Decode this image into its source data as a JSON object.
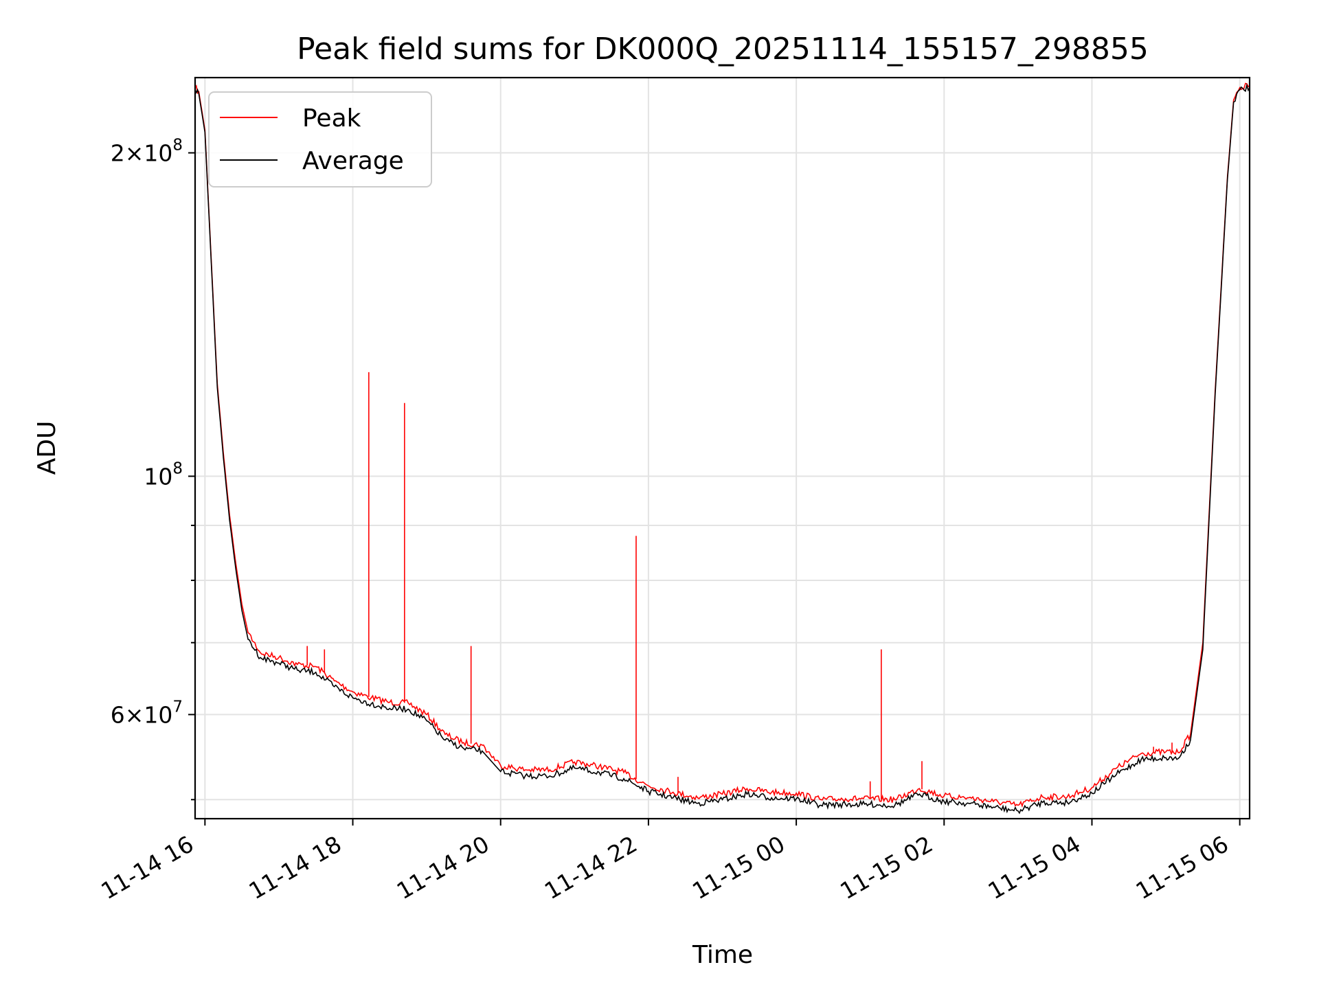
{
  "chart_data": {
    "type": "line",
    "title": "Peak field sums for DK000Q_20251114_155157_298855",
    "xlabel": "Time",
    "ylabel": "ADU",
    "x_range": [
      "2025-11-14 15:52",
      "2025-11-15 06:08"
    ],
    "y_range": [
      48000000,
      235000000
    ],
    "y_scale": "log",
    "grid": true,
    "legend_position": "top-left",
    "x_ticks": [
      {
        "value": "2025-11-14 16:00",
        "label": "11-14 16"
      },
      {
        "value": "2025-11-14 18:00",
        "label": "11-14 18"
      },
      {
        "value": "2025-11-14 20:00",
        "label": "11-14 20"
      },
      {
        "value": "2025-11-14 22:00",
        "label": "11-14 22"
      },
      {
        "value": "2025-11-15 00:00",
        "label": "11-15 00"
      },
      {
        "value": "2025-11-15 02:00",
        "label": "11-15 02"
      },
      {
        "value": "2025-11-15 04:00",
        "label": "11-15 04"
      },
      {
        "value": "2025-11-15 06:00",
        "label": "11-15 06"
      }
    ],
    "y_ticks_major": [
      {
        "value": 60000000,
        "mantissa": "6",
        "exponent": "7"
      },
      {
        "value": 100000000,
        "mantissa": "",
        "exponent": "8"
      },
      {
        "value": 200000000,
        "mantissa": "2",
        "exponent": "8"
      }
    ],
    "y_ticks_minor": [
      50000000,
      70000000,
      80000000,
      90000000
    ],
    "series": [
      {
        "name": "Peak",
        "color": "#ff0000",
        "points": [
          [
            "2025-11-14 15:52",
            230000000
          ],
          [
            "2025-11-14 15:55",
            228000000
          ],
          [
            "2025-11-14 16:00",
            210000000
          ],
          [
            "2025-11-14 16:05",
            160000000
          ],
          [
            "2025-11-14 16:10",
            122000000
          ],
          [
            "2025-11-14 16:15",
            105000000
          ],
          [
            "2025-11-14 16:20",
            92000000
          ],
          [
            "2025-11-14 16:25",
            83000000
          ],
          [
            "2025-11-14 16:30",
            76000000
          ],
          [
            "2025-11-14 16:35",
            71500000
          ],
          [
            "2025-11-14 16:45",
            68500000
          ],
          [
            "2025-11-14 17:00",
            67800000
          ],
          [
            "2025-11-14 17:15",
            66800000
          ],
          [
            "2025-11-14 17:30",
            66500000
          ],
          [
            "2025-11-14 17:45",
            64500000
          ],
          [
            "2025-11-14 18:00",
            63000000
          ],
          [
            "2025-11-14 18:15",
            62200000
          ],
          [
            "2025-11-14 18:30",
            61600000
          ],
          [
            "2025-11-14 18:45",
            61500000
          ],
          [
            "2025-11-14 19:00",
            60000000
          ],
          [
            "2025-11-14 19:15",
            57500000
          ],
          [
            "2025-11-14 19:30",
            56500000
          ],
          [
            "2025-11-14 19:45",
            56200000
          ],
          [
            "2025-11-14 20:00",
            53800000
          ],
          [
            "2025-11-14 20:20",
            53300000
          ],
          [
            "2025-11-14 20:40",
            53300000
          ],
          [
            "2025-11-14 21:00",
            54200000
          ],
          [
            "2025-11-14 21:20",
            53700000
          ],
          [
            "2025-11-14 21:40",
            53000000
          ],
          [
            "2025-11-14 22:00",
            51500000
          ],
          [
            "2025-11-14 22:20",
            50800000
          ],
          [
            "2025-11-14 22:40",
            50200000
          ],
          [
            "2025-11-14 23:00",
            50600000
          ],
          [
            "2025-11-14 23:20",
            51200000
          ],
          [
            "2025-11-14 23:40",
            50800000
          ],
          [
            "2025-11-15 00:00",
            50700000
          ],
          [
            "2025-11-15 00:20",
            50000000
          ],
          [
            "2025-11-15 00:40",
            50100000
          ],
          [
            "2025-11-15 01:00",
            50100000
          ],
          [
            "2025-11-15 01:20",
            50000000
          ],
          [
            "2025-11-15 01:40",
            51200000
          ],
          [
            "2025-11-15 02:00",
            50400000
          ],
          [
            "2025-11-15 02:20",
            50200000
          ],
          [
            "2025-11-15 02:40",
            49800000
          ],
          [
            "2025-11-15 03:00",
            49400000
          ],
          [
            "2025-11-15 03:20",
            50300000
          ],
          [
            "2025-11-15 03:40",
            50300000
          ],
          [
            "2025-11-15 04:00",
            51300000
          ],
          [
            "2025-11-15 04:20",
            53500000
          ],
          [
            "2025-11-15 04:40",
            55200000
          ],
          [
            "2025-11-15 05:00",
            55400000
          ],
          [
            "2025-11-15 05:10",
            55300000
          ],
          [
            "2025-11-15 05:20",
            57500000
          ],
          [
            "2025-11-15 05:30",
            70000000
          ],
          [
            "2025-11-15 05:40",
            120000000
          ],
          [
            "2025-11-15 05:50",
            190000000
          ],
          [
            "2025-11-15 05:55",
            224000000
          ],
          [
            "2025-11-15 06:00",
            230000000
          ],
          [
            "2025-11-15 06:08",
            231000000
          ]
        ],
        "spikes": [
          [
            "2025-11-14 17:23",
            69500000
          ],
          [
            "2025-11-14 17:37",
            69000000
          ],
          [
            "2025-11-14 18:13",
            125000000
          ],
          [
            "2025-11-14 18:42",
            117000000
          ],
          [
            "2025-11-14 19:36",
            69500000
          ],
          [
            "2025-11-14 21:50",
            88000000
          ],
          [
            "2025-11-14 22:24",
            52500000
          ],
          [
            "2025-11-15 01:00",
            52000000
          ],
          [
            "2025-11-15 01:09",
            69000000
          ],
          [
            "2025-11-15 01:42",
            54300000
          ],
          [
            "2025-11-15 04:50",
            56000000
          ],
          [
            "2025-11-15 05:05",
            56500000
          ]
        ]
      },
      {
        "name": "Average",
        "color": "#000000",
        "points": [
          [
            "2025-11-14 15:52",
            229000000
          ],
          [
            "2025-11-14 15:55",
            227000000
          ],
          [
            "2025-11-14 16:00",
            209000000
          ],
          [
            "2025-11-14 16:05",
            159000000
          ],
          [
            "2025-11-14 16:10",
            121000000
          ],
          [
            "2025-11-14 16:15",
            104000000
          ],
          [
            "2025-11-14 16:20",
            91000000
          ],
          [
            "2025-11-14 16:25",
            82000000
          ],
          [
            "2025-11-14 16:30",
            75000000
          ],
          [
            "2025-11-14 16:35",
            70500000
          ],
          [
            "2025-11-14 16:45",
            67800000
          ],
          [
            "2025-11-14 17:00",
            67000000
          ],
          [
            "2025-11-14 17:15",
            66000000
          ],
          [
            "2025-11-14 17:30",
            65700000
          ],
          [
            "2025-11-14 17:45",
            63700000
          ],
          [
            "2025-11-14 18:00",
            62200000
          ],
          [
            "2025-11-14 18:15",
            61400000
          ],
          [
            "2025-11-14 18:30",
            60800000
          ],
          [
            "2025-11-14 18:45",
            60700000
          ],
          [
            "2025-11-14 19:00",
            59200000
          ],
          [
            "2025-11-14 19:15",
            56800000
          ],
          [
            "2025-11-14 19:30",
            55800000
          ],
          [
            "2025-11-14 19:45",
            55500000
          ],
          [
            "2025-11-14 20:00",
            53100000
          ],
          [
            "2025-11-14 20:20",
            52600000
          ],
          [
            "2025-11-14 20:40",
            52600000
          ],
          [
            "2025-11-14 21:00",
            53500000
          ],
          [
            "2025-11-14 21:20",
            53000000
          ],
          [
            "2025-11-14 21:40",
            52300000
          ],
          [
            "2025-11-14 22:00",
            50900000
          ],
          [
            "2025-11-14 22:20",
            50200000
          ],
          [
            "2025-11-14 22:40",
            49600000
          ],
          [
            "2025-11-14 23:00",
            50000000
          ],
          [
            "2025-11-14 23:20",
            50600000
          ],
          [
            "2025-11-14 23:40",
            50200000
          ],
          [
            "2025-11-15 00:00",
            50100000
          ],
          [
            "2025-11-15 00:20",
            49400000
          ],
          [
            "2025-11-15 00:40",
            49500000
          ],
          [
            "2025-11-15 01:00",
            49500000
          ],
          [
            "2025-11-15 01:20",
            49400000
          ],
          [
            "2025-11-15 01:40",
            50600000
          ],
          [
            "2025-11-15 02:00",
            49800000
          ],
          [
            "2025-11-15 02:20",
            49600000
          ],
          [
            "2025-11-15 02:40",
            49200000
          ],
          [
            "2025-11-15 03:00",
            48800000
          ],
          [
            "2025-11-15 03:20",
            49700000
          ],
          [
            "2025-11-15 03:40",
            49700000
          ],
          [
            "2025-11-15 04:00",
            50700000
          ],
          [
            "2025-11-15 04:20",
            52800000
          ],
          [
            "2025-11-15 04:40",
            54500000
          ],
          [
            "2025-11-15 05:00",
            54700000
          ],
          [
            "2025-11-15 05:10",
            54600000
          ],
          [
            "2025-11-15 05:20",
            56800000
          ],
          [
            "2025-11-15 05:30",
            69000000
          ],
          [
            "2025-11-15 05:40",
            119000000
          ],
          [
            "2025-11-15 05:50",
            189000000
          ],
          [
            "2025-11-15 05:55",
            223000000
          ],
          [
            "2025-11-15 06:00",
            229000000
          ],
          [
            "2025-11-15 06:08",
            230000000
          ]
        ]
      }
    ]
  }
}
